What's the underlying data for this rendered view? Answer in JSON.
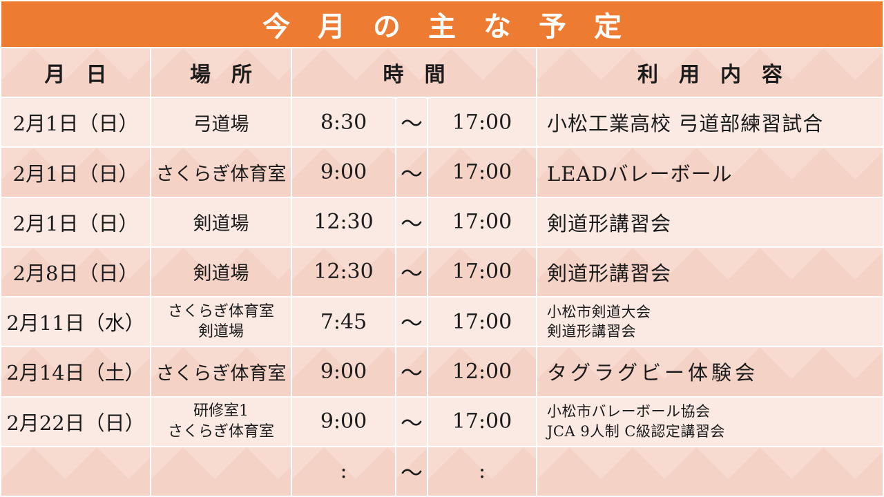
{
  "title": "今　月　の　主　な　予　定",
  "header": {
    "date": "月　日",
    "place": "場　所",
    "time": "時　間",
    "usage": "利　用　内　容"
  },
  "rows": [
    {
      "date": "2月1日（日）",
      "place": "弓道場",
      "place2": "",
      "start": "8:30",
      "tilde": "～",
      "end": "17:00",
      "usage": "小松工業高校 弓道部練習試合",
      "usage2": ""
    },
    {
      "date": "2月1日（日）",
      "place": "さくらぎ体育室",
      "place2": "",
      "start": "9:00",
      "tilde": "～",
      "end": "17:00",
      "usage": "LEADバレーボール",
      "usage2": ""
    },
    {
      "date": "2月1日（日）",
      "place": "剣道場",
      "place2": "",
      "start": "12:30",
      "tilde": "～",
      "end": "17:00",
      "usage": "剣道形講習会",
      "usage2": ""
    },
    {
      "date": "2月8日（日）",
      "place": "剣道場",
      "place2": "",
      "start": "12:30",
      "tilde": "～",
      "end": "17:00",
      "usage": "剣道形講習会",
      "usage2": ""
    },
    {
      "date": "2月11日（水）",
      "place": "さくらぎ体育室",
      "place2": "剣道場",
      "start": "7:45",
      "tilde": "～",
      "end": "17:00",
      "usage": "小松市剣道大会",
      "usage2": "剣道形講習会"
    },
    {
      "date": "2月14日（土）",
      "place": "さくらぎ体育室",
      "place2": "",
      "start": "9:00",
      "tilde": "～",
      "end": "12:00",
      "usage": "タグラグビー体験会",
      "usage2": ""
    },
    {
      "date": "2月22日（日）",
      "place": "研修室1",
      "place2": "さくらぎ体育室",
      "start": "9:00",
      "tilde": "～",
      "end": "17:00",
      "usage": "小松市バレーボール協会",
      "usage2": "JCA 9人制 C級認定講習会"
    },
    {
      "date": "",
      "place": "",
      "place2": "",
      "start": ":",
      "tilde": "～",
      "end": ":",
      "usage": "",
      "usage2": ""
    }
  ],
  "colors": {
    "title_bg": "#ED7B31",
    "title_text": "#FFFFFF",
    "row_light": "#FBEAE3",
    "row_dark": "#F5D2C6",
    "text": "#1B1B1B"
  }
}
